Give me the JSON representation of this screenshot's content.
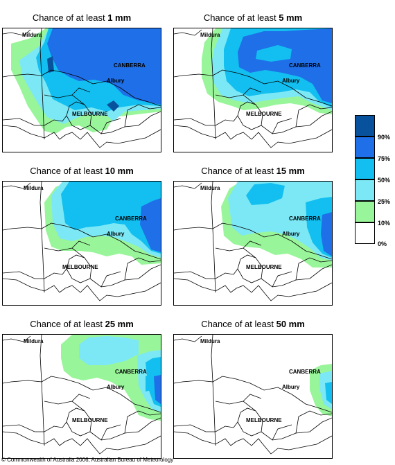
{
  "panels": [
    {
      "title_prefix": "Chance of at least ",
      "amount": "1 mm"
    },
    {
      "title_prefix": "Chance of at least ",
      "amount": "5 mm"
    },
    {
      "title_prefix": "Chance of at least ",
      "amount": "10 mm"
    },
    {
      "title_prefix": "Chance of at least ",
      "amount": "15 mm"
    },
    {
      "title_prefix": "Chance of at least ",
      "amount": "25 mm"
    },
    {
      "title_prefix": "Chance of at least ",
      "amount": "50 mm"
    }
  ],
  "place_labels": {
    "mildura": "Mildura",
    "canberra": "CANBERRA",
    "albury": "Albury",
    "melbourne": "MELBOURNE"
  },
  "legend": {
    "boxes": [
      {
        "color": "#08519c",
        "label": "90%"
      },
      {
        "color": "#1f6fe8",
        "label": "75%"
      },
      {
        "color": "#12bff0",
        "label": "50%"
      },
      {
        "color": "#7ce8f5",
        "label": "25%"
      },
      {
        "color": "#99f59a",
        "label": "10%"
      },
      {
        "color": "#ffffff",
        "label": "0%"
      }
    ],
    "zero_label": "0%"
  },
  "copyright": "© Commonwealth of Australia 2006, Australian Bureau of Meteorology"
}
